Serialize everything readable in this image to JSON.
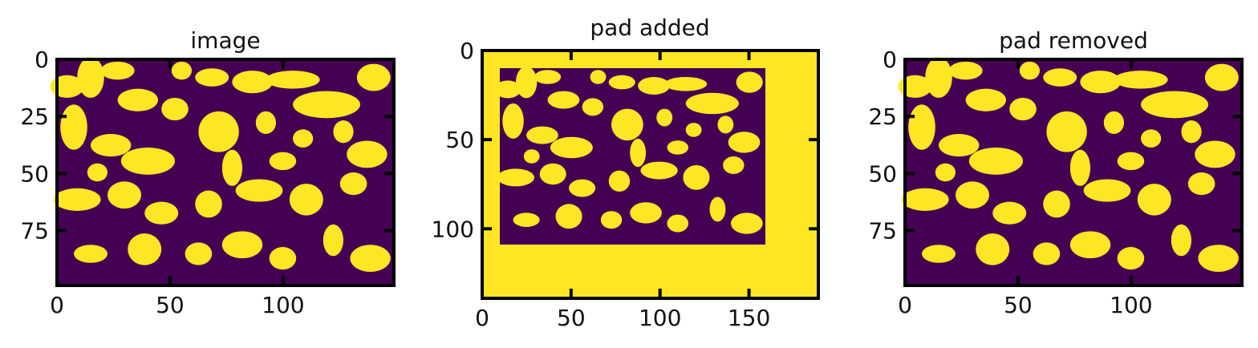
{
  "chart_data": [
    {
      "type": "heatmap",
      "title": "image",
      "xlim": [
        0,
        149
      ],
      "ylim": [
        99,
        0
      ],
      "xticks": [
        "0",
        "50",
        "100"
      ],
      "yticks": [
        "0",
        "25",
        "50",
        "75"
      ],
      "colors": {
        "background": "#440154",
        "foreground": "#fde725",
        "frame": "#000000"
      }
    },
    {
      "type": "heatmap",
      "title": "pad added",
      "xlim": [
        0,
        189
      ],
      "ylim": [
        139,
        0
      ],
      "xticks": [
        "0",
        "50",
        "100",
        "150"
      ],
      "yticks": [
        "0",
        "50",
        "100"
      ],
      "colors": {
        "background": "#440154",
        "foreground": "#fde725",
        "frame": "#000000"
      }
    },
    {
      "type": "heatmap",
      "title": "pad removed",
      "xlim": [
        0,
        149
      ],
      "ylim": [
        99,
        0
      ],
      "xticks": [
        "0",
        "50",
        "100"
      ],
      "yticks": [
        "0",
        "25",
        "50",
        "75"
      ],
      "colors": {
        "background": "#440154",
        "foreground": "#fde725",
        "frame": "#000000"
      }
    }
  ]
}
